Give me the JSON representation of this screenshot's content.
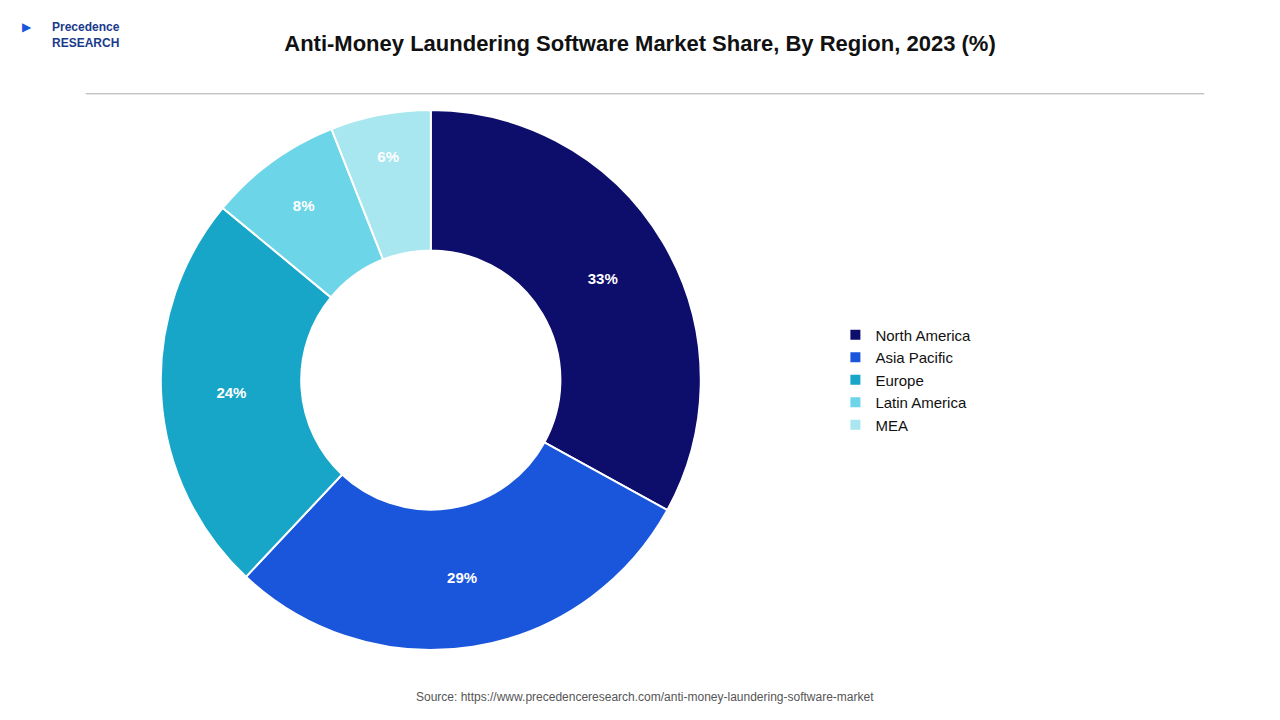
{
  "chart_data": {
    "type": "donut",
    "title": "Anti-Money Laundering Software Market Share, By Region, 2023 (%)",
    "categories": [
      "North America",
      "Asia Pacific",
      "Europe",
      "Latin America",
      "MEA"
    ],
    "values": [
      33,
      29,
      24,
      8,
      6
    ],
    "value_labels": [
      "33%",
      "29%",
      "24%",
      "8%",
      "6%"
    ],
    "colors": [
      "#0d0d6b",
      "#1a56db",
      "#17a5c8",
      "#6dd5e8",
      "#a8e6f0"
    ],
    "data_labels": true,
    "legend": "right",
    "annotations": [
      "Source: https://www.precedenceresearch.com/anti-money-laundering-software-market",
      "Precedence\nRESEARCH",
      "▶"
    ]
  }
}
